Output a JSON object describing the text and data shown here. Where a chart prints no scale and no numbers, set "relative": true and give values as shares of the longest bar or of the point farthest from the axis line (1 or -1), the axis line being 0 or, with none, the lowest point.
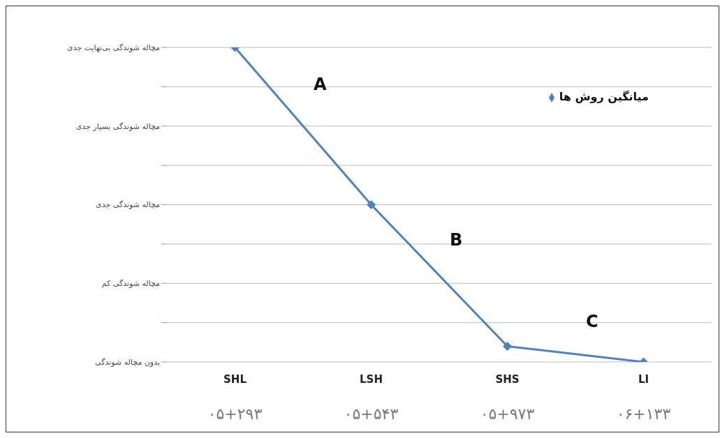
{
  "chart_data": {
    "type": "line",
    "categories": [
      "SHL\n۰۵+۲۹۳",
      "LSH\n۰۵+۵۴۳",
      "SHS\n۰۵+۹۷۳",
      "LI\n۰۶+۱۳۳"
    ],
    "y_categories": [
      "مچاله شوندگی بی‌نهایت جدی",
      "مچاله شوندگی بسیار جدی",
      "مچاله شوندگی جدی",
      "مچاله شوندگی کم",
      "بدون مچاله شوندگی"
    ],
    "relative": true,
    "series": [
      {
        "name": "میانگین روش ها",
        "color": "#4f81bd",
        "values": [
          1,
          0.5,
          0.05,
          0
        ]
      }
    ],
    "annotations": [
      "A",
      "B",
      "C"
    ],
    "grid": "y",
    "legend": "top right",
    "marker": "diamond",
    "line_style": "solid"
  }
}
